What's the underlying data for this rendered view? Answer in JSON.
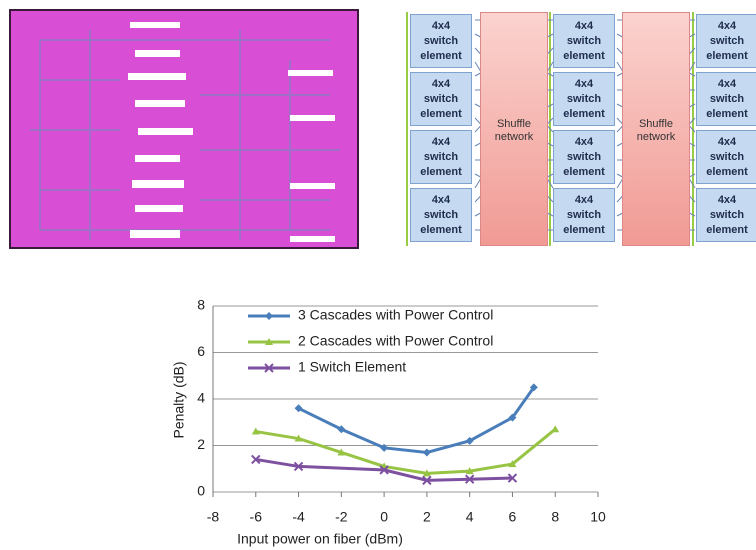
{
  "diagram": {
    "switch_columns": [
      [
        "4x4 switch element",
        "4x4 switch element",
        "4x4 switch element",
        "4x4 switch element"
      ],
      [
        "4x4 switch element",
        "4x4 switch element",
        "4x4 switch element",
        "4x4 switch element"
      ],
      [
        "4x4 switch element",
        "4x4 switch element",
        "4x4 switch element",
        "4x4 switch element"
      ]
    ],
    "shuffle_networks": [
      "Shuffle network",
      "Shuffle network"
    ]
  },
  "chart_data": {
    "type": "line",
    "x_label": "Input power on fiber (dBm)",
    "y_label": "Penalty (dB)",
    "xlim": [
      -8,
      10
    ],
    "xticks": [
      -8,
      -6,
      -4,
      -2,
      0,
      2,
      4,
      6,
      8,
      10
    ],
    "ylim": [
      0,
      8
    ],
    "yticks": [
      0,
      2,
      4,
      6,
      8
    ],
    "grid": true,
    "legend": "upper left",
    "series": [
      {
        "name": "3 Cascades with Power Control",
        "color": "#4a7ebb",
        "marker": "diamond",
        "x": [
          -4,
          -2,
          0,
          2,
          4,
          6,
          7
        ],
        "values": [
          3.6,
          2.7,
          1.9,
          1.7,
          2.2,
          3.2,
          4.5
        ]
      },
      {
        "name": "2 Cascades with Power Control",
        "color": "#98c444",
        "marker": "triangle",
        "x": [
          -6,
          -4,
          -2,
          0,
          2,
          4,
          6,
          8
        ],
        "values": [
          2.6,
          2.3,
          1.7,
          1.1,
          0.8,
          0.9,
          1.2,
          2.7
        ]
      },
      {
        "name": "1 Switch Element",
        "color": "#7d50a0",
        "marker": "x",
        "x": [
          -6,
          -4,
          0,
          2,
          4,
          6
        ],
        "values": [
          1.4,
          1.1,
          0.95,
          0.5,
          0.55,
          0.6
        ]
      }
    ]
  }
}
